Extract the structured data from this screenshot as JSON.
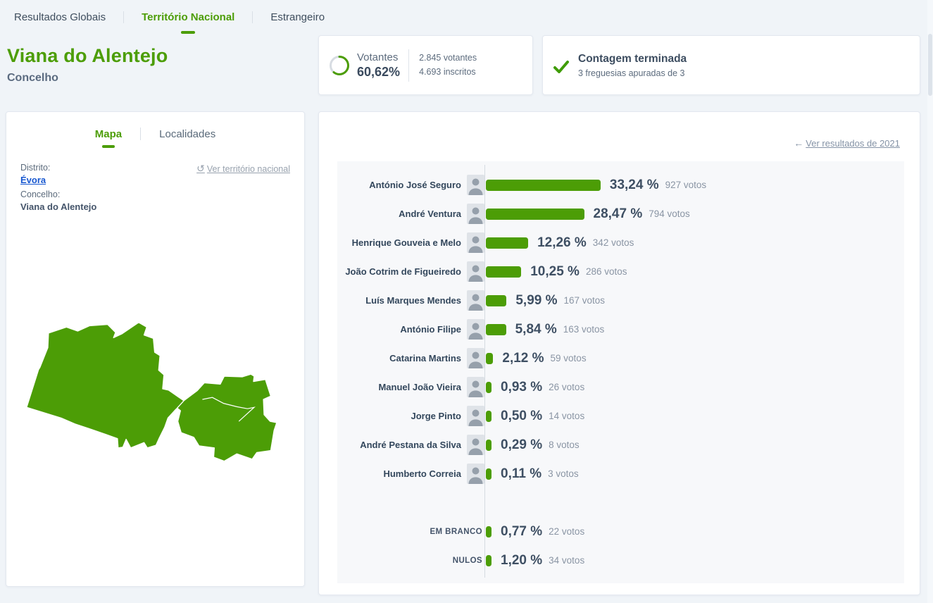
{
  "nav": {
    "items": [
      {
        "label": "Resultados Globais"
      },
      {
        "label": "Território Nacional"
      },
      {
        "label": "Estrangeiro"
      }
    ],
    "active_index": 1
  },
  "header": {
    "title": "Viana do Alentejo",
    "subtitle": "Concelho"
  },
  "turnout": {
    "label": "Votantes",
    "percent": "60,62%",
    "percent_value": 60.62,
    "voters": "2.845 votantes",
    "registered": "4.693 inscritos"
  },
  "counting": {
    "title": "Contagem terminada",
    "subtitle": "3 freguesias apuradas de 3"
  },
  "map_card": {
    "tabs": [
      {
        "label": "Mapa"
      },
      {
        "label": "Localidades"
      }
    ],
    "active_tab_index": 0,
    "district_label": "Distrito:",
    "district_value": "Évora",
    "municipality_label": "Concelho:",
    "municipality_value": "Viana do Alentejo",
    "reset_link": "Ver território nacional"
  },
  "results_card": {
    "history_link": "Ver resultados de 2021"
  },
  "colors": {
    "accent_green": "#4c9d06",
    "link_blue": "#1757d0",
    "background": "#f0f4f8"
  },
  "chart_data": {
    "type": "bar",
    "orientation": "horizontal",
    "value_unit": "percent of votes",
    "candidates": [
      {
        "name": "António José Seguro",
        "percent": 33.24,
        "percent_label": "33,24 %",
        "votes": 927,
        "votes_label": "927 votos",
        "photo": true
      },
      {
        "name": "André Ventura",
        "percent": 28.47,
        "percent_label": "28,47 %",
        "votes": 794,
        "votes_label": "794 votos",
        "photo": true
      },
      {
        "name": "Henrique Gouveia e Melo",
        "percent": 12.26,
        "percent_label": "12,26 %",
        "votes": 342,
        "votes_label": "342 votos",
        "photo": true
      },
      {
        "name": "João Cotrim de Figueiredo",
        "percent": 10.25,
        "percent_label": "10,25 %",
        "votes": 286,
        "votes_label": "286 votos",
        "photo": true
      },
      {
        "name": "Luís Marques Mendes",
        "percent": 5.99,
        "percent_label": "5,99 %",
        "votes": 167,
        "votes_label": "167 votos",
        "photo": true
      },
      {
        "name": "António Filipe",
        "percent": 5.84,
        "percent_label": "5,84 %",
        "votes": 163,
        "votes_label": "163 votos",
        "photo": true
      },
      {
        "name": "Catarina Martins",
        "percent": 2.12,
        "percent_label": "2,12 %",
        "votes": 59,
        "votes_label": "59 votos",
        "photo": true
      },
      {
        "name": "Manuel João Vieira",
        "percent": 0.93,
        "percent_label": "0,93 %",
        "votes": 26,
        "votes_label": "26 votos",
        "photo": true
      },
      {
        "name": "Jorge Pinto",
        "percent": 0.5,
        "percent_label": "0,50 %",
        "votes": 14,
        "votes_label": "14 votos",
        "photo": true
      },
      {
        "name": "André Pestana da Silva",
        "percent": 0.29,
        "percent_label": "0,29 %",
        "votes": 8,
        "votes_label": "8 votos",
        "photo": true
      },
      {
        "name": "Humberto Correia",
        "percent": 0.11,
        "percent_label": "0,11 %",
        "votes": 3,
        "votes_label": "3 votos",
        "photo": true
      }
    ],
    "others": [
      {
        "name": "EM BRANCO",
        "percent": 0.77,
        "percent_label": "0,77 %",
        "votes": 22,
        "votes_label": "22 votos",
        "photo": false
      },
      {
        "name": "NULOS",
        "percent": 1.2,
        "percent_label": "1,20 %",
        "votes": 34,
        "votes_label": "34 votos",
        "photo": false
      }
    ]
  }
}
